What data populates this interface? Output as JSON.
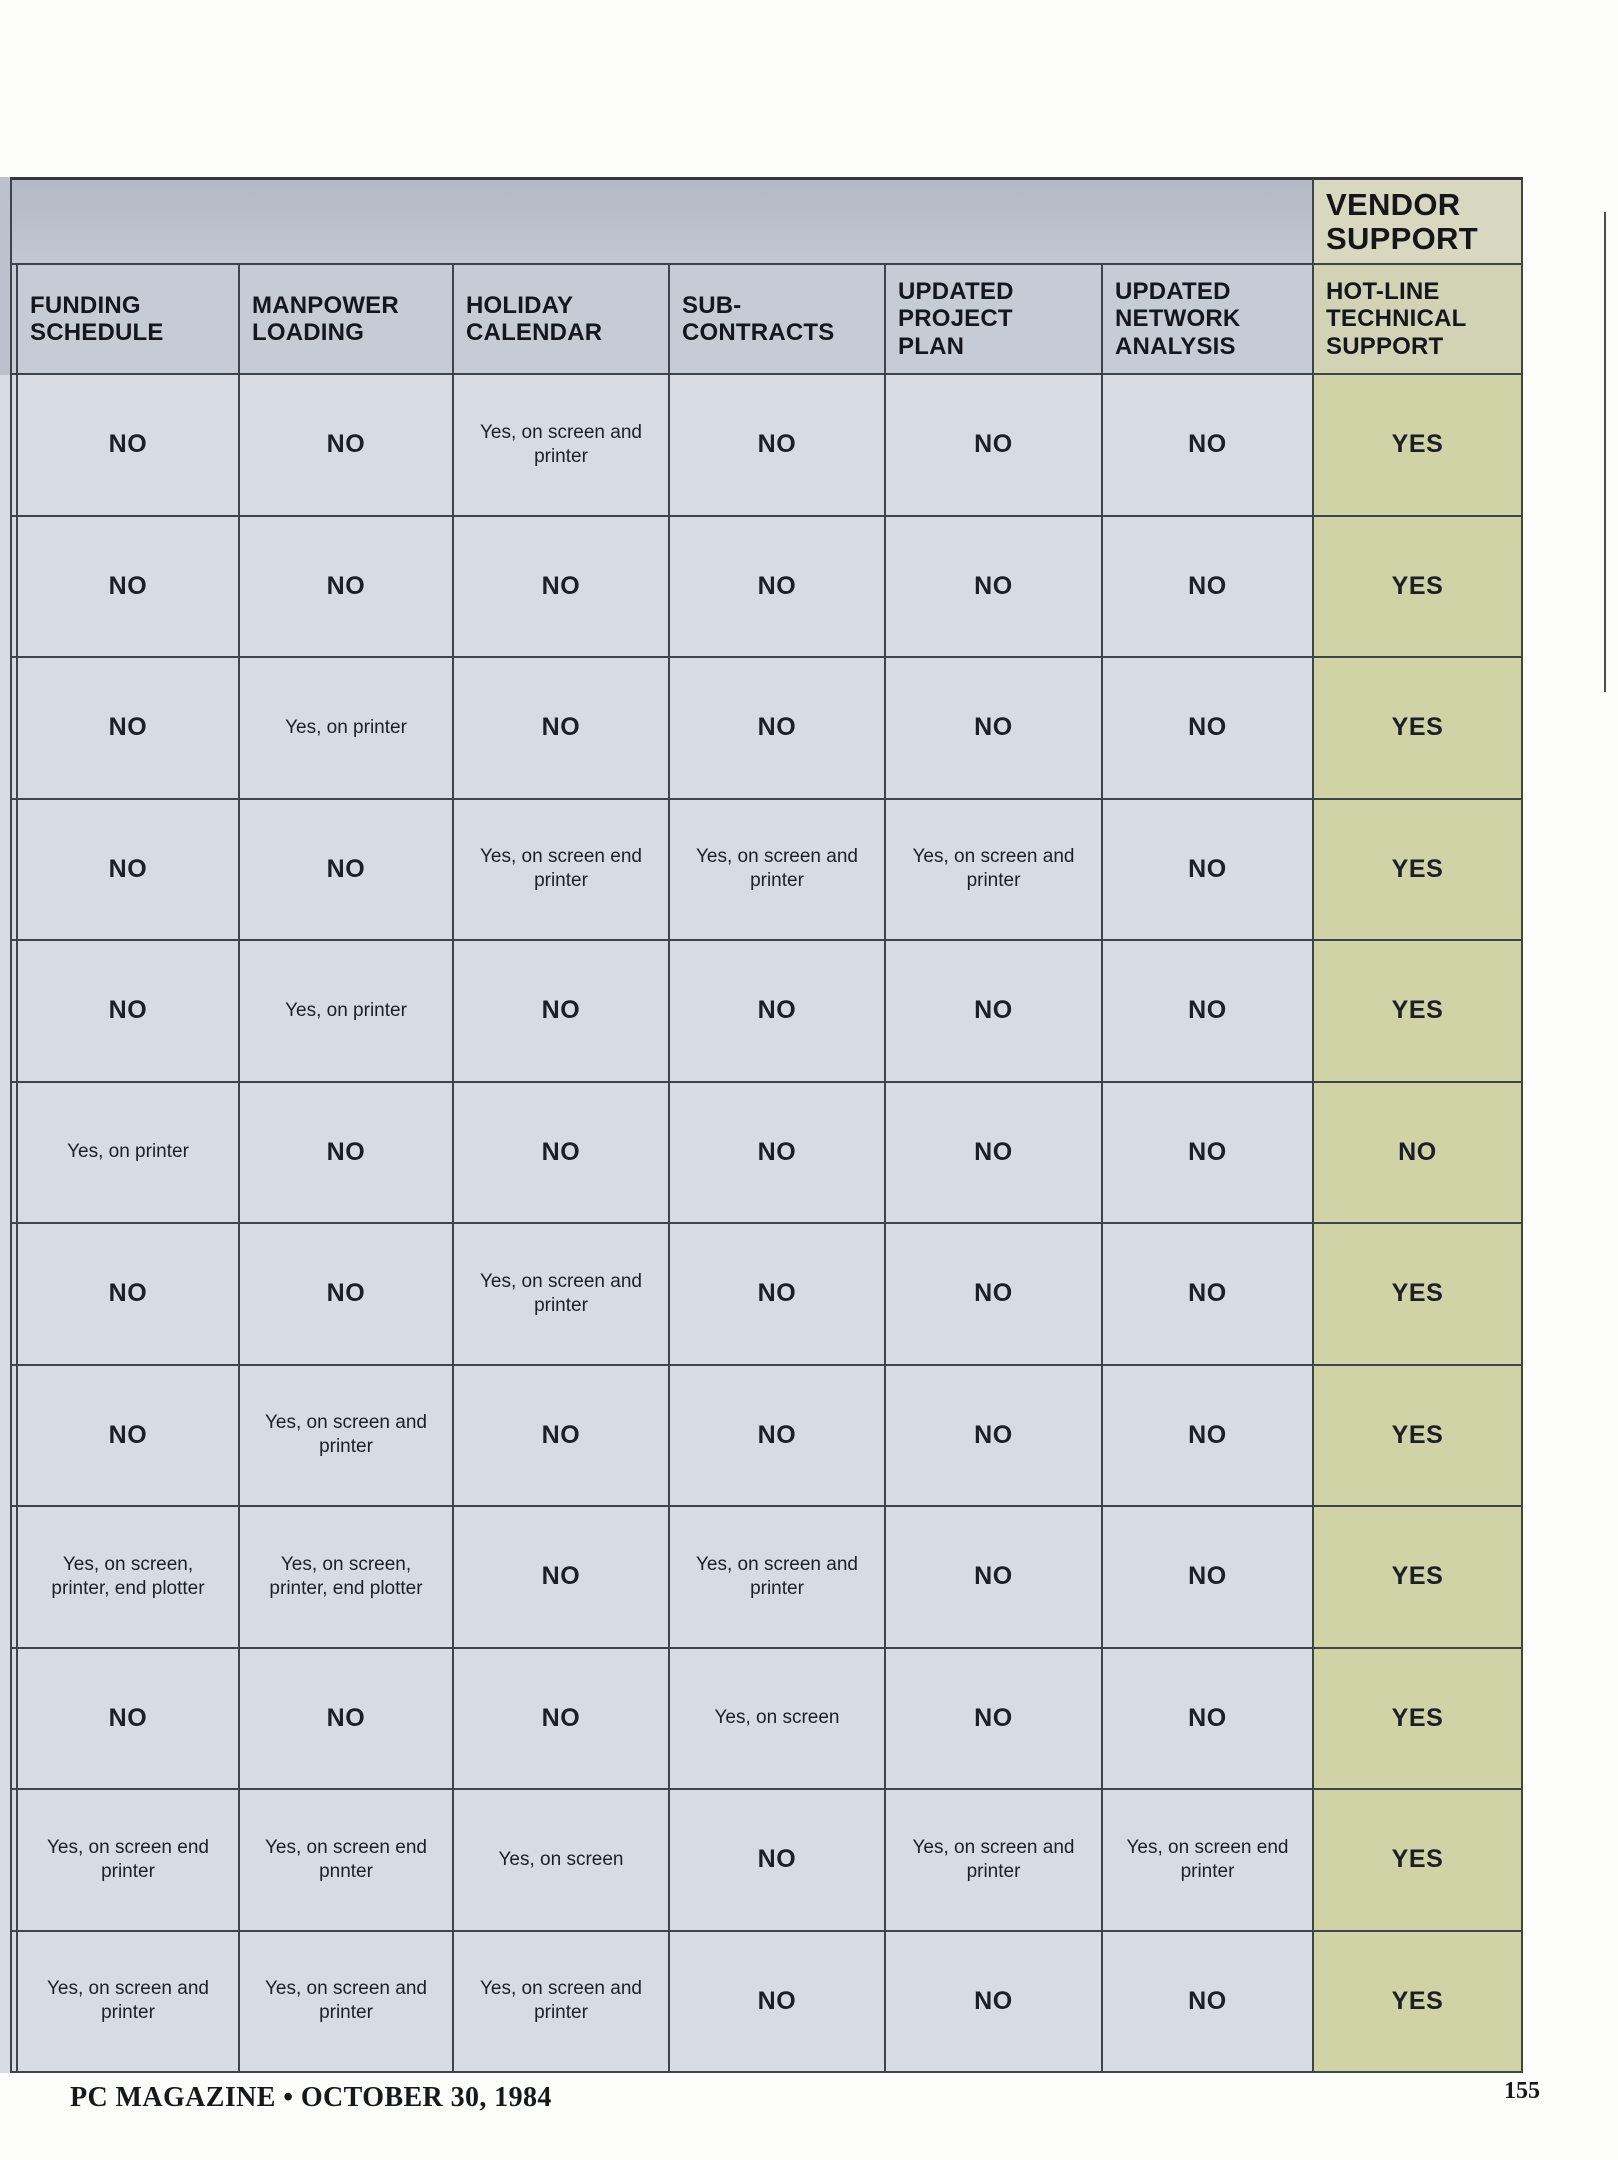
{
  "table": {
    "group_header": "VENDOR\nSUPPORT",
    "columns": [
      {
        "label": "FUNDING\nSCHEDULE"
      },
      {
        "label": "MANPOWER\nLOADING"
      },
      {
        "label": "HOLIDAY\nCALENDAR"
      },
      {
        "label": "SUB-\nCONTRACTS"
      },
      {
        "label": "UPDATED\nPROJECT\nPLAN"
      },
      {
        "label": "UPDATED\nNETWORK\nANALYSIS"
      },
      {
        "label": "HOT-LINE\nTECHNICAL\nSUPPORT"
      }
    ],
    "rows": [
      [
        "NO",
        "NO",
        "Yes, on screen and printer",
        "NO",
        "NO",
        "NO",
        "YES"
      ],
      [
        "NO",
        "NO",
        "NO",
        "NO",
        "NO",
        "NO",
        "YES"
      ],
      [
        "NO",
        "Yes, on printer",
        "NO",
        "NO",
        "NO",
        "NO",
        "YES"
      ],
      [
        "NO",
        "NO",
        "Yes, on screen end printer",
        "Yes, on screen and printer",
        "Yes, on screen and printer",
        "NO",
        "YES"
      ],
      [
        "NO",
        "Yes, on printer",
        "NO",
        "NO",
        "NO",
        "NO",
        "YES"
      ],
      [
        "Yes, on printer",
        "NO",
        "NO",
        "NO",
        "NO",
        "NO",
        "NO"
      ],
      [
        "NO",
        "NO",
        "Yes, on screen and printer",
        "NO",
        "NO",
        "NO",
        "YES"
      ],
      [
        "NO",
        "Yes, on screen and printer",
        "NO",
        "NO",
        "NO",
        "NO",
        "YES"
      ],
      [
        "Yes, on screen, printer, end plotter",
        "Yes, on screen, printer, end plotter",
        "NO",
        "Yes, on screen and printer",
        "NO",
        "NO",
        "YES"
      ],
      [
        "NO",
        "NO",
        "NO",
        "Yes, on screen",
        "NO",
        "NO",
        "YES"
      ],
      [
        "Yes, on screen end printer",
        "Yes, on screen end pnnter",
        "Yes, on screen",
        "NO",
        "Yes, on screen and printer",
        "Yes, on screen end printer",
        "YES"
      ],
      [
        "Yes, on screen and printer",
        "Yes, on screen and printer",
        "Yes, on screen and printer",
        "NO",
        "NO",
        "NO",
        "YES"
      ]
    ]
  },
  "footer": {
    "left": "PC MAGAZINE • OCTOBER 30, 1984",
    "page_number": "155"
  },
  "colors": {
    "cell_blue": "#d7dbe4",
    "header_gray": "#c6ccd6",
    "vendor_khaki": "#cfd3a5",
    "border": "#3f434b"
  }
}
